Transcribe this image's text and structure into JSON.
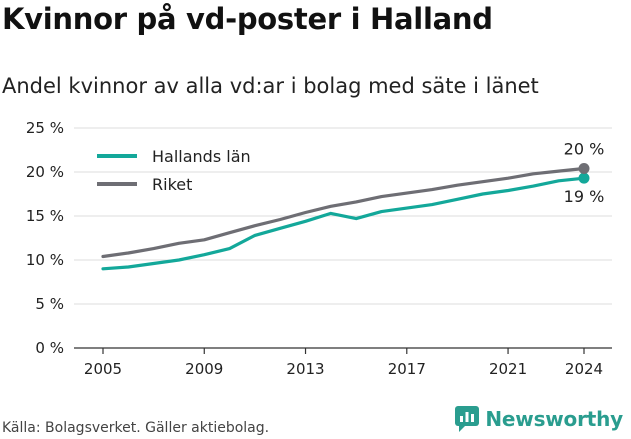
{
  "title": "Kvinnor på vd-poster i Halland",
  "subtitle": "Andel kvinnor av alla vd:ar i bolag med säte i länet",
  "source": "Källa: Bolagsverket. Gäller aktiebolag.",
  "brand": "Newsworthy",
  "colors": {
    "halland": "#13a89a",
    "riket": "#6e6e74",
    "grid": "#dddddd",
    "axis": "#333333",
    "text": "#222222",
    "brand": "#2a9d8f"
  },
  "chart_data": {
    "type": "line",
    "x": [
      2005,
      2006,
      2007,
      2008,
      2009,
      2010,
      2011,
      2012,
      2013,
      2014,
      2015,
      2016,
      2017,
      2018,
      2019,
      2020,
      2021,
      2022,
      2023,
      2024
    ],
    "series": [
      {
        "name": "Hallands län",
        "color": "#13a89a",
        "values": [
          9.0,
          9.2,
          9.6,
          10.0,
          10.6,
          11.3,
          12.8,
          13.6,
          14.4,
          15.3,
          14.7,
          15.5,
          15.9,
          16.3,
          16.9,
          17.5,
          17.9,
          18.4,
          19.0,
          19.3
        ],
        "end_label": "19 %"
      },
      {
        "name": "Riket",
        "color": "#6e6e74",
        "values": [
          10.4,
          10.8,
          11.3,
          11.9,
          12.3,
          13.1,
          13.9,
          14.6,
          15.4,
          16.1,
          16.6,
          17.2,
          17.6,
          18.0,
          18.5,
          18.9,
          19.3,
          19.8,
          20.1,
          20.4
        ],
        "end_label": "20 %"
      }
    ],
    "xticks": [
      2005,
      2009,
      2013,
      2017,
      2021,
      2024
    ],
    "yticks": [
      0,
      5,
      10,
      15,
      20,
      25
    ],
    "ytick_labels": [
      "0 %",
      "5 %",
      "10 %",
      "15 %",
      "20 %",
      "25 %"
    ],
    "ylim": [
      0,
      25
    ],
    "xlim": [
      2005,
      2024
    ],
    "grid": true,
    "legend": "top-left"
  }
}
